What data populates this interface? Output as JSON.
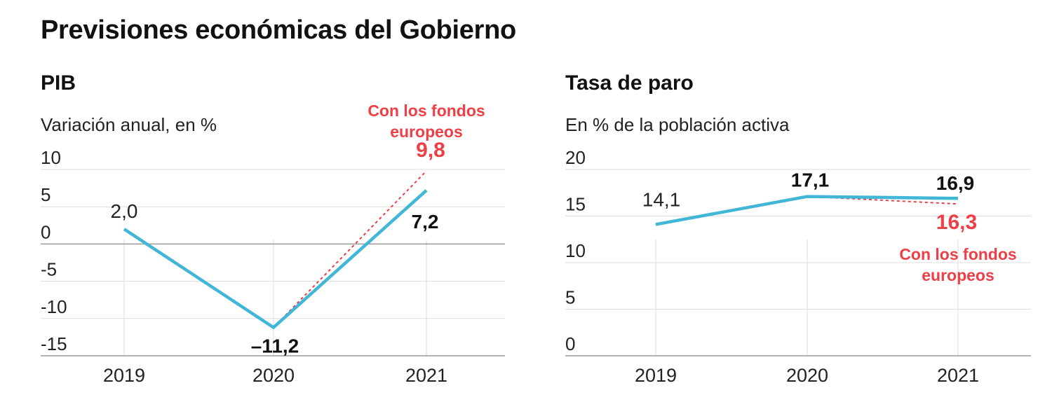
{
  "title": "Previsiones económicas del Gobierno",
  "colors": {
    "series": "#41b6d6",
    "alternative": "#ef3f46",
    "grid": "#dddddd",
    "axis": "#999999"
  },
  "chart_data": [
    {
      "type": "line",
      "title": "PIB",
      "subtitle": "Variación anual, en %",
      "x": [
        "2019",
        "2020",
        "2021"
      ],
      "ylim": [
        -15,
        10
      ],
      "yticks": [
        "10",
        "5",
        "0",
        "-5",
        "-10",
        "-15"
      ],
      "grid": true,
      "series": [
        {
          "values": [
            2.0,
            -11.2,
            7.2
          ],
          "labels": [
            "2,0",
            "–11,2",
            "7,2"
          ]
        },
        {
          "name": "Con los fondos europeos",
          "x": [
            "2020",
            "2021"
          ],
          "values": [
            -11.2,
            9.8
          ],
          "labels": [
            "",
            "9,8"
          ],
          "dashed": true
        }
      ],
      "annotation_lines": [
        "Con los fondos",
        "europeos"
      ]
    },
    {
      "type": "line",
      "title": "Tasa de paro",
      "subtitle": "En % de la población activa",
      "x": [
        "2019",
        "2020",
        "2021"
      ],
      "ylim": [
        0,
        20
      ],
      "yticks": [
        "20",
        "15",
        "10",
        "5",
        "0"
      ],
      "grid": true,
      "series": [
        {
          "values": [
            14.1,
            17.1,
            16.9
          ],
          "labels": [
            "14,1",
            "17,1",
            "16,9"
          ]
        },
        {
          "name": "Con los fondos europeos",
          "x": [
            "2020",
            "2021"
          ],
          "values": [
            17.1,
            16.3
          ],
          "labels": [
            "",
            "16,3"
          ],
          "dashed": true
        }
      ],
      "annotation_lines": [
        "Con los fondos",
        "europeos"
      ]
    }
  ]
}
